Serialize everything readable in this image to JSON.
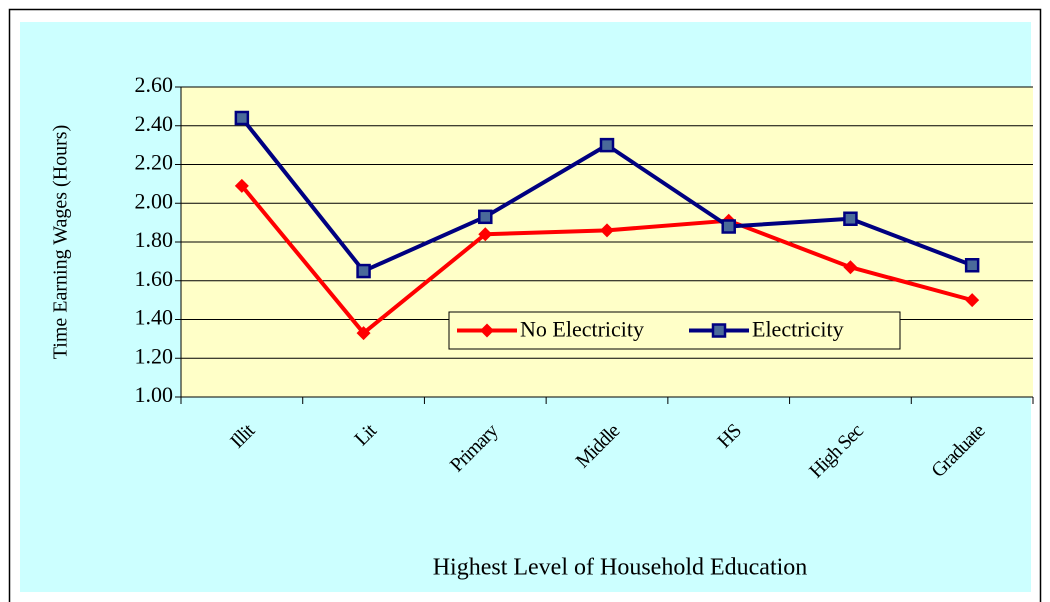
{
  "chart_data": {
    "type": "line",
    "x_label": "Highest Level of Household Education",
    "y_label": "Time Earning Wages (Hours)",
    "categories": [
      "Illit",
      "Lit",
      "Primary",
      "Middle",
      "HS",
      "High Sec",
      "Graduate"
    ],
    "series": [
      {
        "name": "No Electricity",
        "color": "#ff0000",
        "marker": "diamond",
        "values": [
          2.09,
          1.33,
          1.84,
          1.86,
          1.91,
          1.67,
          1.5
        ]
      },
      {
        "name": "Electricity",
        "color": "#000080",
        "marker": "square",
        "values": [
          2.44,
          1.65,
          1.93,
          2.3,
          1.88,
          1.92,
          1.68
        ]
      }
    ],
    "ylim": [
      1.0,
      2.6
    ],
    "yticks": [
      {
        "value": 1.0,
        "label": "1.00"
      },
      {
        "value": 1.2,
        "label": "1.20"
      },
      {
        "value": 1.4,
        "label": "1.40"
      },
      {
        "value": 1.6,
        "label": "1.60"
      },
      {
        "value": 1.8,
        "label": "1.80"
      },
      {
        "value": 2.0,
        "label": "2.00"
      },
      {
        "value": 2.2,
        "label": "2.20"
      },
      {
        "value": 2.4,
        "label": "2.40"
      },
      {
        "value": 2.6,
        "label": "2.60"
      }
    ],
    "grid": true,
    "legend": "center",
    "plot_background": "#ffffc8",
    "background": "#ccffff"
  }
}
